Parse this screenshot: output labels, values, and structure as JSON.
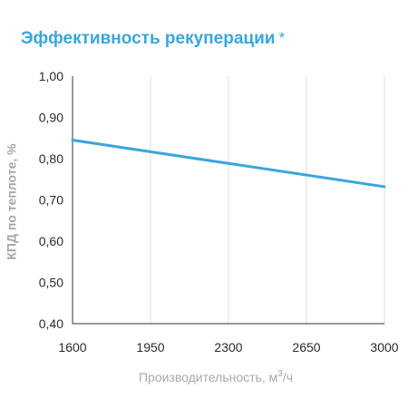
{
  "header": {
    "title": "Эффективность рекуперации",
    "title_mark": "*"
  },
  "colors": {
    "accent": "#3aa6dc",
    "grid": "#dcdcdc",
    "axis": "#333333",
    "label": "#a8a8a8"
  },
  "chart_data": {
    "type": "line",
    "title": "Эффективность рекуперации *",
    "xlabel_main": "Производительность, м",
    "xlabel_sup": "3",
    "xlabel_tail": "/ч",
    "ylabel": "КПД по теплоте, %",
    "xlim": [
      1600,
      3000
    ],
    "ylim": [
      0.4,
      1.0
    ],
    "x_ticks": [
      "1600",
      "1950",
      "2300",
      "2650",
      "3000"
    ],
    "y_ticks": [
      "0,40",
      "0,50",
      "0,60",
      "0,70",
      "0,80",
      "0,90",
      "1,00"
    ],
    "grid": true,
    "series": [
      {
        "x": [
          1600,
          3000
        ],
        "values": [
          0.845,
          0.732
        ]
      }
    ]
  }
}
